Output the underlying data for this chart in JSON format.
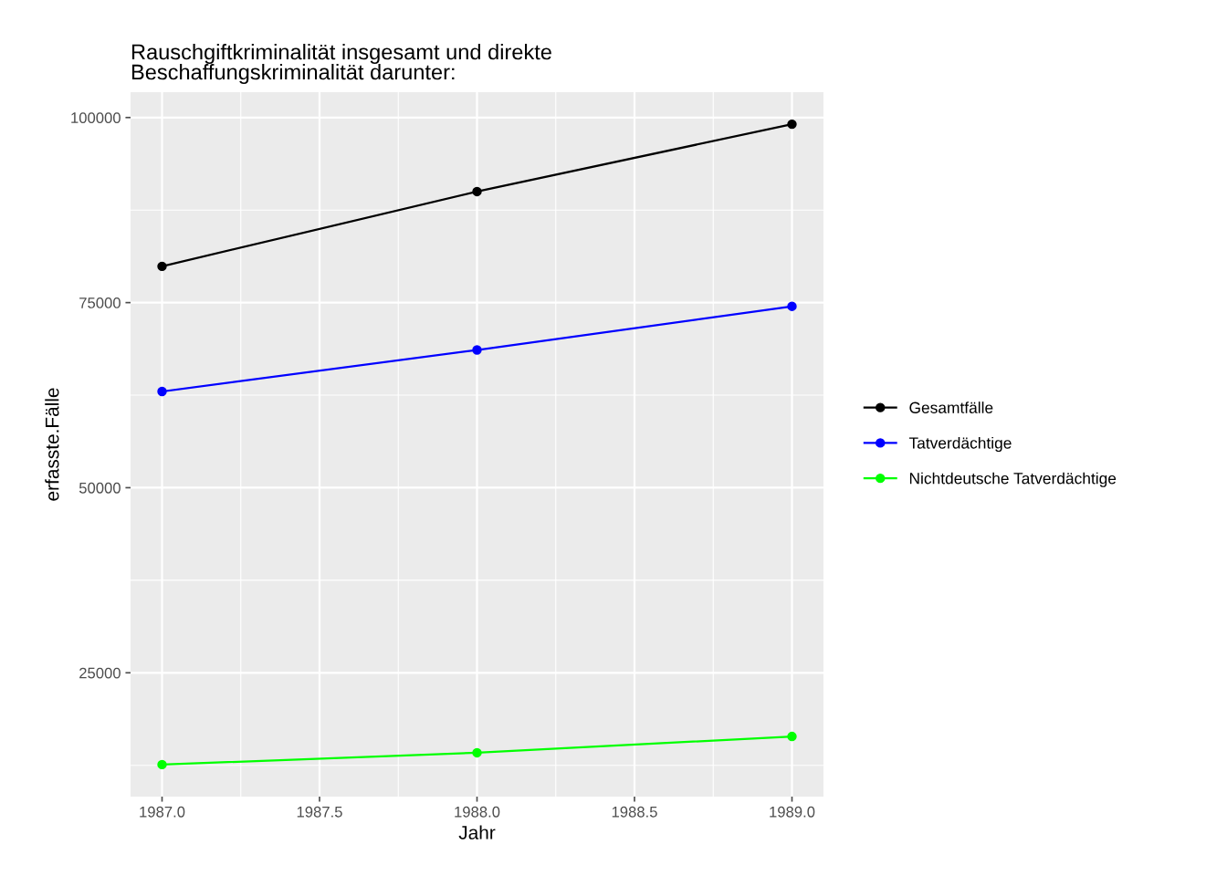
{
  "chart_data": {
    "type": "line",
    "title": "Rauschgiftkriminalität insgesamt und direkte\nBeschaffungskriminalität darunter:",
    "xlabel": "Jahr",
    "ylabel": "erfasste.Fälle",
    "x": [
      1987,
      1988,
      1989
    ],
    "series": [
      {
        "name": "Gesamtfälle",
        "color": "#000000",
        "values": [
          79900,
          90000,
          99100
        ]
      },
      {
        "name": "Tatverdächtige",
        "color": "#0000ff",
        "values": [
          63000,
          68600,
          74500
        ]
      },
      {
        "name": "Nichtdeutsche Tatverdächtige",
        "color": "#00ff00",
        "values": [
          12600,
          14200,
          16400
        ]
      }
    ],
    "xlim": [
      1986.9,
      1989.1
    ],
    "ylim": [
      8275,
      103425
    ],
    "xticks": [
      {
        "value": 1987,
        "label": "1987.0"
      },
      {
        "value": 1987.5,
        "label": "1987.5"
      },
      {
        "value": 1988,
        "label": "1988.0"
      },
      {
        "value": 1988.5,
        "label": "1988.5"
      },
      {
        "value": 1989,
        "label": "1989.0"
      }
    ],
    "yticks": [
      25000,
      50000,
      75000,
      100000
    ],
    "grid": true,
    "legend": "right",
    "marker": "circle",
    "line_style": "solid"
  }
}
